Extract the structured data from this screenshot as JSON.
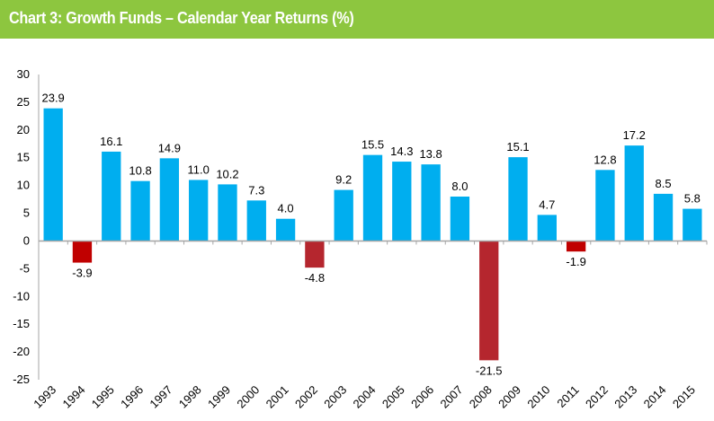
{
  "header": {
    "title": "Chart 3:  Growth Funds – Calendar Year Returns (%)"
  },
  "colors": {
    "header": "#8dc63f",
    "positive": "#00aeef",
    "negative": "#b5262e",
    "negative_alt": "#c00000",
    "axis": "#a6a6a6"
  },
  "chart_data": {
    "type": "bar",
    "title": "Chart 3:  Growth Funds – Calendar Year Returns (%)",
    "xlabel": "",
    "ylabel": "",
    "ylim": [
      -25,
      30
    ],
    "yticks": [
      30,
      25,
      20,
      15,
      10,
      5,
      0,
      -5,
      -10,
      -15,
      -20,
      -25
    ],
    "grid": false,
    "legend": "none",
    "categories": [
      "1993",
      "1994",
      "1995",
      "1996",
      "1997",
      "1998",
      "1999",
      "2000",
      "2001",
      "2002",
      "2003",
      "2004",
      "2005",
      "2006",
      "2007",
      "2008",
      "2009",
      "2010",
      "2011",
      "2012",
      "2013",
      "2014",
      "2015"
    ],
    "values": [
      23.9,
      -3.9,
      16.1,
      10.8,
      14.9,
      11.0,
      10.2,
      7.3,
      4.0,
      -4.8,
      9.2,
      15.5,
      14.3,
      13.8,
      8.0,
      -21.5,
      15.1,
      4.7,
      -1.9,
      12.8,
      17.2,
      8.5,
      5.8
    ],
    "labels": [
      "23.9",
      "-3.9",
      "16.1",
      "10.8",
      "14.9",
      "11.0",
      "10.2",
      "7.3",
      "4.0",
      "-4.8",
      "9.2",
      "15.5",
      "14.3",
      "13.8",
      "8.0",
      "-21.5",
      "15.1",
      "4.7",
      "-1.9",
      "12.8",
      "17.2",
      "8.5",
      "5.8"
    ]
  }
}
